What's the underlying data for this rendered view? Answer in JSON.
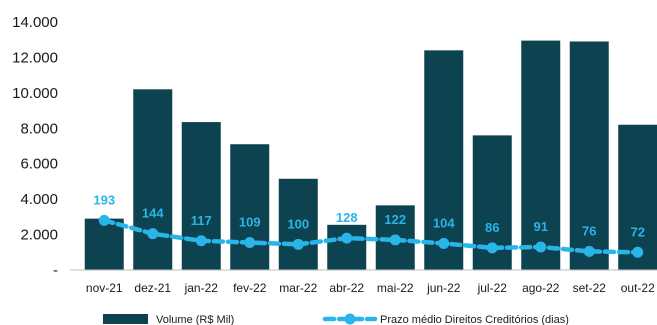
{
  "chart_data": {
    "type": "bar",
    "categories": [
      "nov-21",
      "dez-21",
      "jan-22",
      "fev-22",
      "mar-22",
      "abr-22",
      "mai-22",
      "jun-22",
      "jul-22",
      "ago-22",
      "set-22",
      "out-22"
    ],
    "ylim": [
      0,
      14000
    ],
    "yticks": [
      {
        "value": 0,
        "label": "-"
      },
      {
        "value": 2000,
        "label": "2.000"
      },
      {
        "value": 4000,
        "label": "4.000"
      },
      {
        "value": 6000,
        "label": "6.000"
      },
      {
        "value": 8000,
        "label": "8.000"
      },
      {
        "value": 10000,
        "label": "10.000"
      },
      {
        "value": 12000,
        "label": "12.000"
      },
      {
        "value": 14000,
        "label": "14.000"
      }
    ],
    "series": [
      {
        "name": "Volume (R$ Mil)",
        "type": "bar",
        "color": "#0d4250",
        "values": [
          2900,
          10200,
          8350,
          7100,
          5150,
          2550,
          3650,
          12400,
          7600,
          12950,
          12900,
          8200
        ]
      },
      {
        "name": "Prazo médio Direitos Creditórios (dias)",
        "type": "line",
        "style": "dashed-with-markers",
        "color": "#29b5e8",
        "values": [
          193,
          144,
          117,
          109,
          100,
          128,
          122,
          104,
          86,
          91,
          76,
          72
        ],
        "labels": [
          "193",
          "144",
          "117",
          "109",
          "100",
          "128",
          "122",
          "104",
          "86",
          "91",
          "76",
          "72"
        ],
        "plot_y": [
          2800,
          2050,
          1650,
          1550,
          1450,
          1800,
          1700,
          1500,
          1250,
          1300,
          1050,
          1000
        ]
      }
    ],
    "legend_position": "bottom",
    "grid": false
  }
}
